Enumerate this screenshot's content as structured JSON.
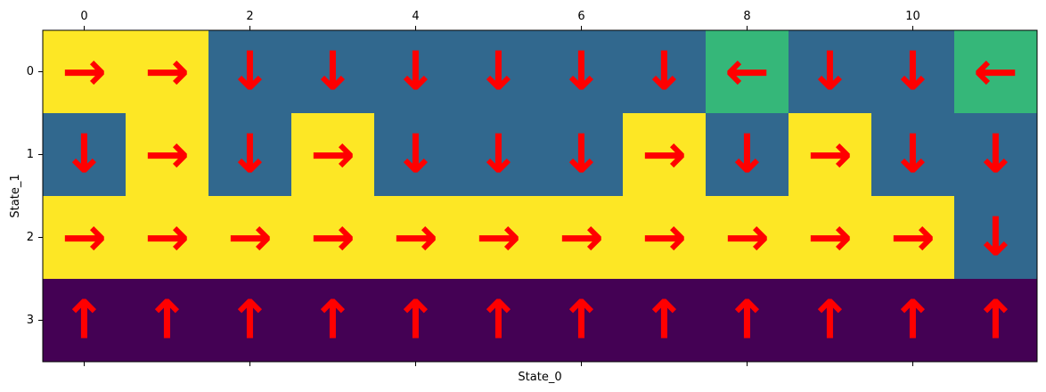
{
  "chart_data": {
    "type": "heatmap",
    "title": "",
    "xlabel": "State_0",
    "ylabel": "State_1",
    "x_range": [
      0,
      11
    ],
    "y_range": [
      0,
      3
    ],
    "x_ticks": [
      0,
      2,
      4,
      6,
      8,
      10
    ],
    "y_ticks": [
      0,
      1,
      2,
      3
    ],
    "x_tick_labels": [
      "0",
      "2",
      "4",
      "6",
      "8",
      "10"
    ],
    "y_tick_labels": [
      "0",
      "1",
      "2",
      "3"
    ],
    "x_ticks_position": "top",
    "grid": false,
    "colormap": "viridis",
    "values": [
      [
        3,
        3,
        1,
        1,
        1,
        1,
        1,
        1,
        2,
        1,
        1,
        2
      ],
      [
        1,
        3,
        1,
        3,
        1,
        1,
        1,
        3,
        1,
        3,
        1,
        1
      ],
      [
        3,
        3,
        3,
        3,
        3,
        3,
        3,
        3,
        3,
        3,
        3,
        1
      ],
      [
        0,
        0,
        0,
        0,
        0,
        0,
        0,
        0,
        0,
        0,
        0,
        0
      ]
    ],
    "actions": [
      [
        "right",
        "right",
        "down",
        "down",
        "down",
        "down",
        "down",
        "down",
        "left",
        "down",
        "down",
        "left"
      ],
      [
        "down",
        "right",
        "down",
        "right",
        "down",
        "down",
        "down",
        "right",
        "down",
        "right",
        "down",
        "down"
      ],
      [
        "right",
        "right",
        "right",
        "right",
        "right",
        "right",
        "right",
        "right",
        "right",
        "right",
        "right",
        "down"
      ],
      [
        "up",
        "up",
        "up",
        "up",
        "up",
        "up",
        "up",
        "up",
        "up",
        "up",
        "up",
        "up"
      ]
    ],
    "arrow_symbols": {
      "up": "↑",
      "down": "↓",
      "left": "←",
      "right": "→"
    },
    "value_colors": {
      "0": "#440154",
      "1": "#31688e",
      "2": "#35b779",
      "3": "#fde725"
    },
    "arrow_color": "#ff0000"
  }
}
